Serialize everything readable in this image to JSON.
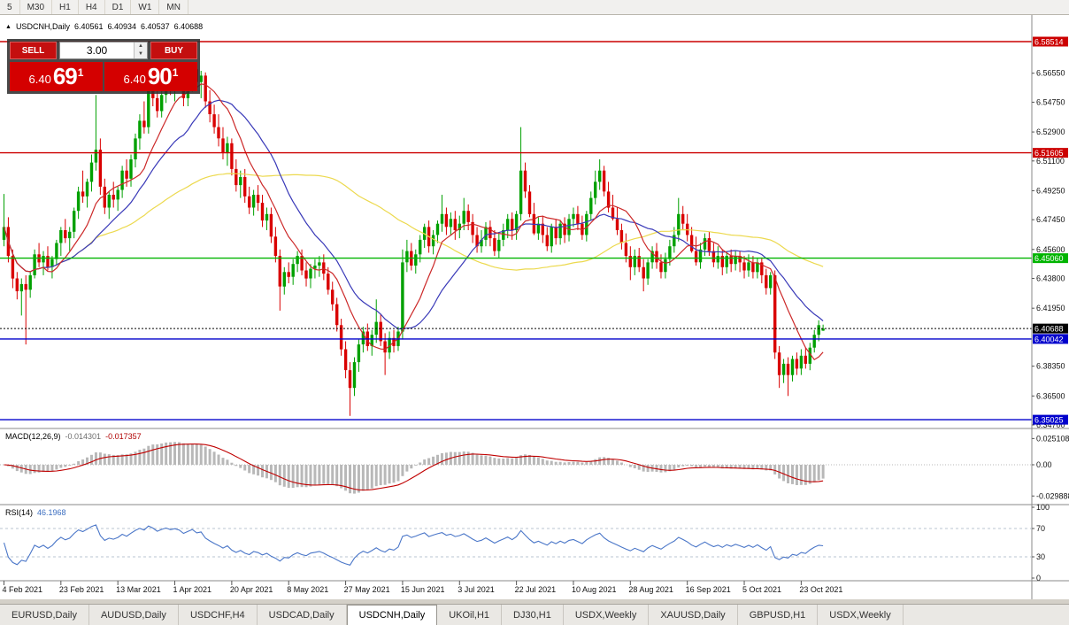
{
  "toolbar": {
    "timeframes": [
      "5",
      "M30",
      "H1",
      "H4",
      "D1",
      "W1",
      "MN"
    ],
    "active_timeframe": "D1"
  },
  "chart_header": {
    "collapse_icon": "▲",
    "symbol": "USDCNH,Daily",
    "open": "6.40561",
    "high": "6.40934",
    "low": "6.40537",
    "close": "6.40688"
  },
  "trade_panel": {
    "sell_label": "SELL",
    "buy_label": "BUY",
    "volume": "3.00",
    "sell_price_prefix": "6.40",
    "sell_price_big": "69",
    "sell_price_sup": "1",
    "buy_price_prefix": "6.40",
    "buy_price_big": "90",
    "buy_price_sup": "1"
  },
  "price_axis": {
    "plain_labels": [
      "6.56550",
      "6.54750",
      "6.52900",
      "6.51100",
      "6.49250",
      "6.47450",
      "6.45600",
      "6.43800",
      "6.41950",
      "6.38350",
      "6.36500",
      "6.34700"
    ],
    "level_boxes": [
      {
        "label": "6.58514",
        "value": 6.58514,
        "color": "#cc0000",
        "line": "solid"
      },
      {
        "label": "6.51605",
        "value": 6.51605,
        "color": "#cc0000",
        "line": "solid"
      },
      {
        "label": "6.45060",
        "value": 6.4506,
        "color": "#00b400",
        "line": "solid"
      },
      {
        "label": "6.40688",
        "value": 6.40688,
        "color": "#000000",
        "line": "dotted"
      },
      {
        "label": "6.40042",
        "value": 6.40042,
        "color": "#0000cc",
        "line": "solid"
      },
      {
        "label": "6.35025",
        "value": 6.35025,
        "color": "#0000cc",
        "line": "solid"
      }
    ]
  },
  "time_axis": {
    "labels": [
      {
        "text": "4 Feb 2021",
        "index": 0
      },
      {
        "text": "23 Feb 2021",
        "index": 13
      },
      {
        "text": "13 Mar 2021",
        "index": 26
      },
      {
        "text": "1 Apr 2021",
        "index": 39
      },
      {
        "text": "20 Apr 2021",
        "index": 52
      },
      {
        "text": "8 May 2021",
        "index": 65
      },
      {
        "text": "27 May 2021",
        "index": 78
      },
      {
        "text": "15 Jun 2021",
        "index": 91
      },
      {
        "text": "3 Jul 2021",
        "index": 104
      },
      {
        "text": "22 Jul 2021",
        "index": 117
      },
      {
        "text": "10 Aug 2021",
        "index": 130
      },
      {
        "text": "28 Aug 2021",
        "index": 143
      },
      {
        "text": "16 Sep 2021",
        "index": 156
      },
      {
        "text": "5 Oct 2021",
        "index": 169
      },
      {
        "text": "23 Oct 2021",
        "index": 182
      }
    ]
  },
  "macd_panel": {
    "title": "MACD(12,26,9)",
    "value_main": "-0.014301",
    "value_signal": "-0.017357",
    "axis_labels": [
      {
        "text": "0.025108",
        "value": 0.025108
      },
      {
        "text": "0.00",
        "value": 0
      },
      {
        "text": "-0.029888",
        "value": -0.029888
      }
    ]
  },
  "rsi_panel": {
    "title": "RSI(14)",
    "value": "46.1968",
    "axis_labels": [
      {
        "text": "100",
        "value": 100
      },
      {
        "text": "70",
        "value": 70
      },
      {
        "text": "30",
        "value": 30
      },
      {
        "text": "0",
        "value": 0
      }
    ],
    "levels": [
      70,
      30
    ]
  },
  "bottom_tabs": [
    {
      "label": "EURUSD,Daily",
      "active": false
    },
    {
      "label": "AUDUSD,Daily",
      "active": false
    },
    {
      "label": "USDCHF,H4",
      "active": false
    },
    {
      "label": "USDCAD,Daily",
      "active": false
    },
    {
      "label": "USDCNH,Daily",
      "active": true
    },
    {
      "label": "UKOil,H1",
      "active": false
    },
    {
      "label": "DJ30,H1",
      "active": false
    },
    {
      "label": "USDX,Weekly",
      "active": false
    },
    {
      "label": "XAUUSD,Daily",
      "active": false
    },
    {
      "label": "GBPUSD,H1",
      "active": false
    },
    {
      "label": "USDX,Weekly",
      "active": false
    }
  ],
  "colors": {
    "up": "#00a000",
    "down": "#d90000",
    "ma_fast": "#cc2929",
    "ma_slow": "#3939b8",
    "ma_long": "#ecd94e",
    "macd_hist": "#b8b8b8",
    "macd_signal": "#c00000",
    "rsi": "#4a76c8",
    "axis_text": "#111111",
    "separator": "#8a8a8a"
  },
  "chart_data": {
    "type": "candlestick",
    "symbol": "USDCNH",
    "timeframe": "Daily",
    "overlays": [
      {
        "name": "SMA-fast",
        "period": 10,
        "color": "#cc2929"
      },
      {
        "name": "SMA-slow",
        "period": 20,
        "color": "#3939b8"
      },
      {
        "name": "SMA-long",
        "period": 60,
        "color": "#ecd94e"
      }
    ],
    "indicators": [
      {
        "type": "MACD",
        "fast": 12,
        "slow": 26,
        "signal": 9
      },
      {
        "type": "RSI",
        "period": 14
      }
    ],
    "candles": [
      [
        6.462,
        6.4905,
        6.458,
        6.47
      ],
      [
        6.47,
        6.476,
        6.448,
        6.452
      ],
      [
        6.452,
        6.456,
        6.432,
        6.438
      ],
      [
        6.438,
        6.442,
        6.425,
        6.43
      ],
      [
        6.43,
        6.438,
        6.415,
        6.4345
      ],
      [
        6.4345,
        6.44,
        6.397,
        6.431
      ],
      [
        6.431,
        6.442,
        6.426,
        6.44
      ],
      [
        6.44,
        6.456,
        6.438,
        6.453
      ],
      [
        6.453,
        6.46,
        6.445,
        6.448
      ],
      [
        6.448,
        6.455,
        6.44,
        6.452
      ],
      [
        6.452,
        6.458,
        6.443,
        6.445
      ],
      [
        6.445,
        6.452,
        6.438,
        6.45
      ],
      [
        6.45,
        6.462,
        6.446,
        6.46
      ],
      [
        6.46,
        6.47,
        6.452,
        6.468
      ],
      [
        6.468,
        6.475,
        6.46,
        6.463
      ],
      [
        6.463,
        6.47,
        6.455,
        6.467
      ],
      [
        6.467,
        6.482,
        6.463,
        6.48
      ],
      [
        6.48,
        6.495,
        6.475,
        6.492
      ],
      [
        6.492,
        6.505,
        6.485,
        6.489
      ],
      [
        6.489,
        6.5,
        6.482,
        6.498
      ],
      [
        6.498,
        6.515,
        6.492,
        6.51
      ],
      [
        6.51,
        6.552,
        6.505,
        6.518
      ],
      [
        6.518,
        6.525,
        6.49,
        6.495
      ],
      [
        6.495,
        6.5,
        6.478,
        6.482
      ],
      [
        6.482,
        6.492,
        6.475,
        6.49
      ],
      [
        6.49,
        6.498,
        6.482,
        6.487
      ],
      [
        6.487,
        6.495,
        6.48,
        6.493
      ],
      [
        6.493,
        6.508,
        6.488,
        6.505
      ],
      [
        6.505,
        6.512,
        6.495,
        6.5
      ],
      [
        6.5,
        6.515,
        6.495,
        6.512
      ],
      [
        6.512,
        6.528,
        6.507,
        6.525
      ],
      [
        6.525,
        6.54,
        6.518,
        6.536
      ],
      [
        6.536,
        6.548,
        6.528,
        6.532
      ],
      [
        6.532,
        6.56,
        6.528,
        6.555
      ],
      [
        6.555,
        6.562,
        6.545,
        6.55
      ],
      [
        6.55,
        6.558,
        6.538,
        6.542
      ],
      [
        6.542,
        6.555,
        6.538,
        6.552
      ],
      [
        6.552,
        6.565,
        6.547,
        6.56
      ],
      [
        6.56,
        6.568,
        6.552,
        6.556
      ],
      [
        6.556,
        6.564,
        6.548,
        6.561
      ],
      [
        6.561,
        6.57,
        6.555,
        6.558
      ],
      [
        6.558,
        6.566,
        6.545,
        6.55
      ],
      [
        6.55,
        6.562,
        6.545,
        6.559
      ],
      [
        6.559,
        6.572,
        6.554,
        6.568
      ],
      [
        6.568,
        6.571,
        6.555,
        6.56
      ],
      [
        6.56,
        6.567,
        6.55,
        6.564
      ],
      [
        6.564,
        6.566,
        6.544,
        6.548
      ],
      [
        6.548,
        6.555,
        6.535,
        6.54
      ],
      [
        6.54,
        6.546,
        6.528,
        6.532
      ],
      [
        6.532,
        6.54,
        6.52,
        6.525
      ],
      [
        6.525,
        6.532,
        6.512,
        6.516
      ],
      [
        6.516,
        6.526,
        6.508,
        6.522
      ],
      [
        6.522,
        6.525,
        6.502,
        6.506
      ],
      [
        6.506,
        6.512,
        6.492,
        6.496
      ],
      [
        6.496,
        6.505,
        6.488,
        6.501
      ],
      [
        6.501,
        6.506,
        6.485,
        6.489
      ],
      [
        6.489,
        6.495,
        6.478,
        6.482
      ],
      [
        6.482,
        6.493,
        6.477,
        6.49
      ],
      [
        6.49,
        6.496,
        6.48,
        6.485
      ],
      [
        6.485,
        6.49,
        6.47,
        6.474
      ],
      [
        6.474,
        6.482,
        6.468,
        6.478
      ],
      [
        6.478,
        6.482,
        6.46,
        6.464
      ],
      [
        6.464,
        6.47,
        6.448,
        6.452
      ],
      [
        6.452,
        6.456,
        6.418,
        6.433
      ],
      [
        6.433,
        6.445,
        6.428,
        6.442
      ],
      [
        6.442,
        6.448,
        6.435,
        6.439
      ],
      [
        6.439,
        6.45,
        6.434,
        6.447
      ],
      [
        6.447,
        6.455,
        6.442,
        6.452
      ],
      [
        6.452,
        6.456,
        6.44,
        6.443
      ],
      [
        6.443,
        6.448,
        6.433,
        6.438
      ],
      [
        6.438,
        6.447,
        6.432,
        6.444
      ],
      [
        6.444,
        6.45,
        6.438,
        6.446
      ],
      [
        6.446,
        6.452,
        6.439,
        6.448
      ],
      [
        6.448,
        6.453,
        6.437,
        6.441
      ],
      [
        6.441,
        6.445,
        6.428,
        6.431
      ],
      [
        6.431,
        6.436,
        6.418,
        6.422
      ],
      [
        6.422,
        6.426,
        6.405,
        6.409
      ],
      [
        6.409,
        6.413,
        6.39,
        6.394
      ],
      [
        6.394,
        6.399,
        6.376,
        6.381
      ],
      [
        6.381,
        6.386,
        6.3526,
        6.37
      ],
      [
        6.37,
        6.389,
        6.365,
        6.386
      ],
      [
        6.386,
        6.4,
        6.38,
        6.397
      ],
      [
        6.397,
        6.408,
        6.392,
        6.405
      ],
      [
        6.405,
        6.41,
        6.393,
        6.396
      ],
      [
        6.396,
        6.406,
        6.39,
        6.403
      ],
      [
        6.403,
        6.425,
        6.398,
        6.411
      ],
      [
        6.411,
        6.416,
        6.396,
        6.399
      ],
      [
        6.399,
        6.404,
        6.378,
        6.392
      ],
      [
        6.392,
        6.405,
        6.388,
        6.401
      ],
      [
        6.401,
        6.406,
        6.392,
        6.396
      ],
      [
        6.396,
        6.408,
        6.393,
        6.405
      ],
      [
        6.405,
        6.456,
        6.4,
        6.448
      ],
      [
        6.448,
        6.462,
        6.442,
        6.455
      ],
      [
        6.455,
        6.46,
        6.443,
        6.446
      ],
      [
        6.446,
        6.456,
        6.441,
        6.453
      ],
      [
        6.453,
        6.465,
        6.448,
        6.462
      ],
      [
        6.462,
        6.472,
        6.457,
        6.47
      ],
      [
        6.47,
        6.474,
        6.454,
        6.458
      ],
      [
        6.458,
        6.468,
        6.453,
        6.465
      ],
      [
        6.465,
        6.474,
        6.46,
        6.472
      ],
      [
        6.472,
        6.49,
        6.467,
        6.478
      ],
      [
        6.478,
        6.482,
        6.465,
        6.47
      ],
      [
        6.47,
        6.479,
        6.465,
        6.475
      ],
      [
        6.475,
        6.48,
        6.462,
        6.468
      ],
      [
        6.468,
        6.477,
        6.463,
        6.472
      ],
      [
        6.472,
        6.488,
        6.468,
        6.48
      ],
      [
        6.48,
        6.484,
        6.468,
        6.473
      ],
      [
        6.473,
        6.478,
        6.46,
        6.465
      ],
      [
        6.465,
        6.47,
        6.454,
        6.458
      ],
      [
        6.458,
        6.468,
        6.454,
        6.462
      ],
      [
        6.462,
        6.473,
        6.458,
        6.47
      ],
      [
        6.47,
        6.474,
        6.458,
        6.463
      ],
      [
        6.463,
        6.468,
        6.452,
        6.455
      ],
      [
        6.455,
        6.466,
        6.451,
        6.462
      ],
      [
        6.462,
        6.472,
        6.458,
        6.468
      ],
      [
        6.468,
        6.478,
        6.463,
        6.475
      ],
      [
        6.475,
        6.479,
        6.462,
        6.468
      ],
      [
        6.468,
        6.48,
        6.462,
        6.478
      ],
      [
        6.478,
        6.532,
        6.474,
        6.505
      ],
      [
        6.505,
        6.51,
        6.488,
        6.492
      ],
      [
        6.492,
        6.496,
        6.476,
        6.478
      ],
      [
        6.478,
        6.485,
        6.465,
        6.466
      ],
      [
        6.466,
        6.476,
        6.462,
        6.472
      ],
      [
        6.472,
        6.477,
        6.46,
        6.465
      ],
      [
        6.465,
        6.47,
        6.455,
        6.458
      ],
      [
        6.458,
        6.472,
        6.454,
        6.47
      ],
      [
        6.47,
        6.475,
        6.459,
        6.463
      ],
      [
        6.463,
        6.474,
        6.459,
        6.472
      ],
      [
        6.472,
        6.476,
        6.46,
        6.465
      ],
      [
        6.465,
        6.478,
        6.461,
        6.475
      ],
      [
        6.475,
        6.482,
        6.47,
        6.478
      ],
      [
        6.478,
        6.483,
        6.468,
        6.472
      ],
      [
        6.472,
        6.477,
        6.462,
        6.465
      ],
      [
        6.465,
        6.48,
        6.461,
        6.478
      ],
      [
        6.478,
        6.492,
        6.474,
        6.488
      ],
      [
        6.488,
        6.505,
        6.484,
        6.498
      ],
      [
        6.498,
        6.512,
        6.493,
        6.505
      ],
      [
        6.505,
        6.508,
        6.489,
        6.492
      ],
      [
        6.492,
        6.498,
        6.479,
        6.482
      ],
      [
        6.482,
        6.49,
        6.474,
        6.475
      ],
      [
        6.475,
        6.482,
        6.465,
        6.468
      ],
      [
        6.468,
        6.472,
        6.456,
        6.46
      ],
      [
        6.46,
        6.466,
        6.448,
        6.452
      ],
      [
        6.452,
        6.458,
        6.437,
        6.445
      ],
      [
        6.445,
        6.456,
        6.44,
        6.452
      ],
      [
        6.452,
        6.457,
        6.442,
        6.445
      ],
      [
        6.445,
        6.45,
        6.43,
        6.438
      ],
      [
        6.438,
        6.45,
        6.434,
        6.448
      ],
      [
        6.448,
        6.458,
        6.444,
        6.455
      ],
      [
        6.455,
        6.46,
        6.444,
        6.448
      ],
      [
        6.448,
        6.453,
        6.438,
        6.442
      ],
      [
        6.442,
        6.454,
        6.438,
        6.45
      ],
      [
        6.45,
        6.462,
        6.446,
        6.458
      ],
      [
        6.458,
        6.47,
        6.454,
        6.465
      ],
      [
        6.465,
        6.488,
        6.461,
        6.478
      ],
      [
        6.478,
        6.483,
        6.468,
        6.472
      ],
      [
        6.472,
        6.478,
        6.461,
        6.465
      ],
      [
        6.465,
        6.47,
        6.454,
        6.455
      ],
      [
        6.455,
        6.464,
        6.446,
        6.448
      ],
      [
        6.448,
        6.46,
        6.444,
        6.456
      ],
      [
        6.456,
        6.466,
        6.452,
        6.463
      ],
      [
        6.463,
        6.467,
        6.452,
        6.455
      ],
      [
        6.455,
        6.46,
        6.445,
        6.448
      ],
      [
        6.448,
        6.458,
        6.444,
        6.452
      ],
      [
        6.452,
        6.456,
        6.44,
        6.445
      ],
      [
        6.445,
        6.455,
        6.441,
        6.452
      ],
      [
        6.452,
        6.456,
        6.442,
        6.447
      ],
      [
        6.447,
        6.455,
        6.443,
        6.452
      ],
      [
        6.452,
        6.455,
        6.442,
        6.448
      ],
      [
        6.448,
        6.452,
        6.438,
        6.443
      ],
      [
        6.443,
        6.453,
        6.439,
        6.448
      ],
      [
        6.448,
        6.452,
        6.438,
        6.442
      ],
      [
        6.442,
        6.451,
        6.438,
        6.448
      ],
      [
        6.448,
        6.451,
        6.435,
        6.44
      ],
      [
        6.44,
        6.444,
        6.428,
        6.432
      ],
      [
        6.432,
        6.442,
        6.428,
        6.44
      ],
      [
        6.44,
        6.443,
        6.388,
        6.392
      ],
      [
        6.392,
        6.396,
        6.37,
        6.378
      ],
      [
        6.378,
        6.388,
        6.373,
        6.385
      ],
      [
        6.385,
        6.389,
        6.365,
        6.378
      ],
      [
        6.378,
        6.39,
        6.374,
        6.388
      ],
      [
        6.388,
        6.392,
        6.378,
        6.382
      ],
      [
        6.382,
        6.394,
        6.378,
        6.39
      ],
      [
        6.39,
        6.395,
        6.382,
        6.385
      ],
      [
        6.385,
        6.398,
        6.381,
        6.395
      ],
      [
        6.395,
        6.406,
        6.392,
        6.403
      ],
      [
        6.403,
        6.412,
        6.399,
        6.409
      ],
      [
        6.4056,
        6.4093,
        6.4054,
        6.4069
      ]
    ]
  }
}
